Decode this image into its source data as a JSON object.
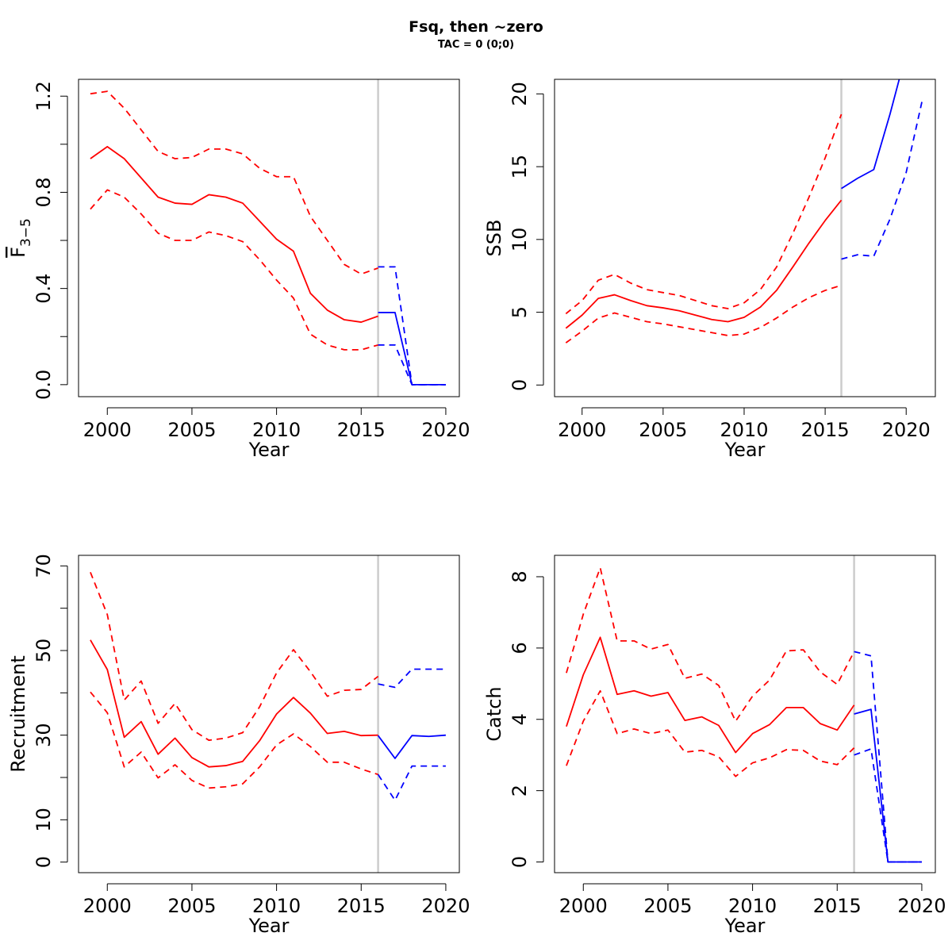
{
  "figure": {
    "title": "Fsq, then ~zero",
    "subtitle": "TAC = 0 (0;0)"
  },
  "colors": {
    "historical": "#ff0000",
    "forecast": "#0000ff",
    "divider": "#cccccc"
  },
  "chart_data": [
    {
      "id": "fbar",
      "type": "line",
      "xlabel": "Year",
      "ylabel": "F3-5",
      "ylabel_parts": {
        "base": "F",
        "sub": "3−5"
      },
      "xlim": [
        1998.3,
        2020.8
      ],
      "ylim": [
        -0.05,
        1.27
      ],
      "xticks": [
        2000,
        2005,
        2010,
        2015,
        2020
      ],
      "yticks": [
        0.0,
        0.2,
        0.4,
        0.6,
        0.8,
        1.0,
        1.2
      ],
      "ytick_labels": [
        "0.0",
        "",
        "0.4",
        "",
        "0.8",
        "",
        "1.2"
      ],
      "divider_x": 2016,
      "series": [
        {
          "role": "estimate",
          "segment": "historical",
          "style": "solid",
          "x": [
            1999,
            2000,
            2001,
            2002,
            2003,
            2004,
            2005,
            2006,
            2007,
            2008,
            2009,
            2010,
            2011,
            2012,
            2013,
            2014,
            2015,
            2016
          ],
          "y": [
            0.94,
            0.99,
            0.94,
            0.86,
            0.78,
            0.755,
            0.75,
            0.79,
            0.78,
            0.755,
            0.68,
            0.605,
            0.555,
            0.38,
            0.31,
            0.27,
            0.26,
            0.285
          ]
        },
        {
          "role": "upper",
          "segment": "historical",
          "style": "dashed",
          "x": [
            1999,
            2000,
            2001,
            2002,
            2003,
            2004,
            2005,
            2006,
            2007,
            2008,
            2009,
            2010,
            2011,
            2012,
            2013,
            2014,
            2015,
            2016
          ],
          "y": [
            1.21,
            1.22,
            1.15,
            1.06,
            0.97,
            0.94,
            0.945,
            0.98,
            0.98,
            0.96,
            0.9,
            0.865,
            0.865,
            0.7,
            0.6,
            0.5,
            0.46,
            0.485
          ]
        },
        {
          "role": "lower",
          "segment": "historical",
          "style": "dashed",
          "x": [
            1999,
            2000,
            2001,
            2002,
            2003,
            2004,
            2005,
            2006,
            2007,
            2008,
            2009,
            2010,
            2011,
            2012,
            2013,
            2014,
            2015,
            2016
          ],
          "y": [
            0.73,
            0.81,
            0.78,
            0.71,
            0.63,
            0.6,
            0.6,
            0.635,
            0.62,
            0.595,
            0.52,
            0.435,
            0.36,
            0.21,
            0.165,
            0.145,
            0.145,
            0.165
          ]
        },
        {
          "role": "estimate",
          "segment": "forecast",
          "style": "solid",
          "x": [
            2016,
            2017,
            2018,
            2019,
            2020
          ],
          "y": [
            0.3,
            0.3,
            0.0,
            0.0,
            0.0
          ]
        },
        {
          "role": "upper",
          "segment": "forecast",
          "style": "dashed",
          "x": [
            2016,
            2017,
            2018,
            2019,
            2020
          ],
          "y": [
            0.49,
            0.49,
            0.0,
            0.0,
            0.0
          ]
        },
        {
          "role": "lower",
          "segment": "forecast",
          "style": "dashed",
          "x": [
            2016,
            2017,
            2018,
            2019,
            2020
          ],
          "y": [
            0.165,
            0.165,
            0.0,
            0.0,
            0.0
          ]
        }
      ]
    },
    {
      "id": "ssb",
      "type": "line",
      "xlabel": "Year",
      "ylabel": "SSB",
      "xlim": [
        1998.3,
        2021.8
      ],
      "ylim": [
        -0.8,
        21.0
      ],
      "xticks": [
        2000,
        2005,
        2010,
        2015,
        2020
      ],
      "yticks": [
        0,
        5,
        10,
        15,
        20
      ],
      "ytick_labels": [
        "0",
        "5",
        "10",
        "15",
        "20"
      ],
      "divider_x": 2016,
      "series": [
        {
          "role": "estimate",
          "segment": "historical",
          "style": "solid",
          "x": [
            1999,
            2000,
            2001,
            2002,
            2003,
            2004,
            2005,
            2006,
            2007,
            2008,
            2009,
            2010,
            2011,
            2012,
            2013,
            2014,
            2015,
            2016
          ],
          "y": [
            3.9,
            4.8,
            5.95,
            6.2,
            5.8,
            5.45,
            5.3,
            5.1,
            4.8,
            4.5,
            4.35,
            4.65,
            5.35,
            6.5,
            8.1,
            9.75,
            11.3,
            12.7
          ]
        },
        {
          "role": "upper",
          "segment": "historical",
          "style": "dashed",
          "x": [
            1999,
            2000,
            2001,
            2002,
            2003,
            2004,
            2005,
            2006,
            2007,
            2008,
            2009,
            2010,
            2011,
            2012,
            2013,
            2014,
            2015,
            2016
          ],
          "y": [
            4.9,
            5.8,
            7.2,
            7.6,
            7.0,
            6.55,
            6.35,
            6.15,
            5.8,
            5.45,
            5.25,
            5.65,
            6.55,
            8.1,
            10.4,
            12.9,
            15.6,
            18.6
          ]
        },
        {
          "role": "lower",
          "segment": "historical",
          "style": "dashed",
          "x": [
            1999,
            2000,
            2001,
            2002,
            2003,
            2004,
            2005,
            2006,
            2007,
            2008,
            2009,
            2010,
            2011,
            2012,
            2013,
            2014,
            2015,
            2016
          ],
          "y": [
            2.9,
            3.7,
            4.6,
            4.95,
            4.65,
            4.35,
            4.2,
            4.0,
            3.8,
            3.6,
            3.4,
            3.5,
            3.95,
            4.6,
            5.35,
            6.0,
            6.5,
            6.85
          ]
        },
        {
          "role": "estimate",
          "segment": "forecast",
          "style": "solid",
          "x": [
            2016,
            2017,
            2018,
            2019,
            2020
          ],
          "y": [
            13.5,
            14.2,
            14.8,
            18.6,
            22.8
          ]
        },
        {
          "role": "lower",
          "segment": "forecast",
          "style": "dashed",
          "x": [
            2016,
            2017,
            2018,
            2019,
            2020,
            2021
          ],
          "y": [
            8.65,
            8.95,
            8.85,
            11.4,
            14.6,
            19.6
          ]
        }
      ]
    },
    {
      "id": "recruitment",
      "type": "line",
      "xlabel": "Year",
      "ylabel": "Recruitment",
      "xlim": [
        1998.3,
        2020.8
      ],
      "ylim": [
        -2.5,
        72.5
      ],
      "xticks": [
        2000,
        2005,
        2010,
        2015,
        2020
      ],
      "yticks": [
        0,
        10,
        20,
        30,
        40,
        50,
        60,
        70
      ],
      "ytick_labels": [
        "0",
        "10",
        "",
        "30",
        "",
        "50",
        "",
        "70"
      ],
      "divider_x": 2016,
      "series": [
        {
          "role": "estimate",
          "segment": "historical",
          "style": "solid",
          "x": [
            1999,
            2000,
            2001,
            2002,
            2003,
            2004,
            2005,
            2006,
            2007,
            2008,
            2009,
            2010,
            2011,
            2012,
            2013,
            2014,
            2015,
            2016
          ],
          "y": [
            52.5,
            45.5,
            29.5,
            33.2,
            25.5,
            29.3,
            24.7,
            22.5,
            22.8,
            23.8,
            28.7,
            35.0,
            38.9,
            35.2,
            30.4,
            30.9,
            29.9,
            30.0
          ]
        },
        {
          "role": "upper",
          "segment": "historical",
          "style": "dashed",
          "x": [
            1999,
            2000,
            2001,
            2002,
            2003,
            2004,
            2005,
            2006,
            2007,
            2008,
            2009,
            2010,
            2011,
            2012,
            2013,
            2014,
            2015,
            2016
          ],
          "y": [
            68.5,
            58.5,
            38.3,
            42.8,
            32.8,
            37.5,
            31.3,
            28.8,
            29.3,
            30.6,
            36.7,
            44.7,
            50.2,
            45.0,
            39.2,
            40.6,
            40.8,
            43.9
          ]
        },
        {
          "role": "lower",
          "segment": "historical",
          "style": "dashed",
          "x": [
            1999,
            2000,
            2001,
            2002,
            2003,
            2004,
            2005,
            2006,
            2007,
            2008,
            2009,
            2010,
            2011,
            2012,
            2013,
            2014,
            2015,
            2016
          ],
          "y": [
            40.2,
            35.3,
            22.5,
            26.0,
            19.9,
            23.0,
            19.3,
            17.5,
            17.8,
            18.5,
            22.5,
            27.7,
            30.3,
            27.3,
            23.6,
            23.6,
            22.0,
            20.7
          ]
        },
        {
          "role": "estimate",
          "segment": "forecast",
          "style": "solid",
          "x": [
            2016,
            2017,
            2018,
            2019,
            2020
          ],
          "y": [
            29.9,
            24.5,
            29.9,
            29.7,
            30.0
          ]
        },
        {
          "role": "upper",
          "segment": "forecast",
          "style": "dashed",
          "x": [
            2016,
            2017,
            2018,
            2019,
            2020
          ],
          "y": [
            42.1,
            41.3,
            45.6,
            45.6,
            45.6
          ]
        },
        {
          "role": "lower",
          "segment": "forecast",
          "style": "dashed",
          "x": [
            2016,
            2017,
            2018,
            2019,
            2020
          ],
          "y": [
            20.7,
            14.6,
            22.7,
            22.7,
            22.7
          ]
        }
      ]
    },
    {
      "id": "catch",
      "type": "line",
      "xlabel": "Year",
      "ylabel": "Catch",
      "xlim": [
        1998.3,
        2020.8
      ],
      "ylim": [
        -0.3,
        8.6
      ],
      "xticks": [
        2000,
        2005,
        2010,
        2015,
        2020
      ],
      "yticks": [
        0,
        2,
        4,
        6,
        8
      ],
      "ytick_labels": [
        "0",
        "2",
        "4",
        "6",
        "8"
      ],
      "divider_x": 2016,
      "series": [
        {
          "role": "estimate",
          "segment": "historical",
          "style": "solid",
          "x": [
            1999,
            2000,
            2001,
            2002,
            2003,
            2004,
            2005,
            2006,
            2007,
            2008,
            2009,
            2010,
            2011,
            2012,
            2013,
            2014,
            2015,
            2016
          ],
          "y": [
            3.8,
            5.25,
            6.3,
            4.7,
            4.8,
            4.65,
            4.75,
            3.97,
            4.07,
            3.83,
            3.07,
            3.6,
            3.85,
            4.33,
            4.33,
            3.88,
            3.7,
            4.4
          ]
        },
        {
          "role": "upper",
          "segment": "historical",
          "style": "dashed",
          "x": [
            1999,
            2000,
            2001,
            2002,
            2003,
            2004,
            2005,
            2006,
            2007,
            2008,
            2009,
            2010,
            2011,
            2012,
            2013,
            2014,
            2015,
            2016
          ],
          "y": [
            5.3,
            6.95,
            8.25,
            6.2,
            6.2,
            5.97,
            6.1,
            5.15,
            5.27,
            4.95,
            3.95,
            4.65,
            5.1,
            5.92,
            5.95,
            5.33,
            4.98,
            5.9
          ]
        },
        {
          "role": "lower",
          "segment": "historical",
          "style": "dashed",
          "x": [
            1999,
            2000,
            2001,
            2002,
            2003,
            2004,
            2005,
            2006,
            2007,
            2008,
            2009,
            2010,
            2011,
            2012,
            2013,
            2014,
            2015,
            2016
          ],
          "y": [
            2.7,
            3.95,
            4.8,
            3.6,
            3.73,
            3.6,
            3.7,
            3.08,
            3.13,
            2.95,
            2.4,
            2.78,
            2.92,
            3.15,
            3.13,
            2.83,
            2.73,
            3.2
          ]
        },
        {
          "role": "estimate",
          "segment": "forecast",
          "style": "solid",
          "x": [
            2016,
            2017,
            2018,
            2019,
            2020
          ],
          "y": [
            4.15,
            4.28,
            0.0,
            0.0,
            0.0
          ]
        },
        {
          "role": "upper",
          "segment": "forecast",
          "style": "dashed",
          "x": [
            2016,
            2017,
            2018,
            2019,
            2020
          ],
          "y": [
            5.9,
            5.78,
            0.0,
            0.0,
            0.0
          ]
        },
        {
          "role": "lower",
          "segment": "forecast",
          "style": "dashed",
          "x": [
            2016,
            2017,
            2018,
            2019,
            2020
          ],
          "y": [
            3.0,
            3.17,
            0.0,
            0.0,
            0.0
          ]
        }
      ]
    }
  ]
}
